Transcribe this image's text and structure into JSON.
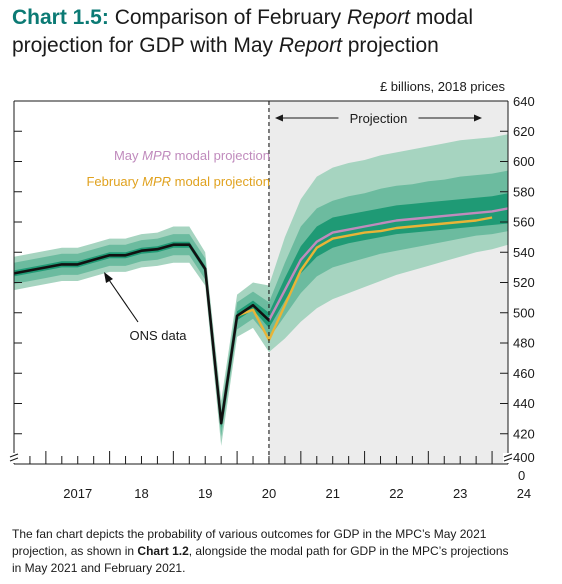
{
  "title": {
    "number": "Chart 1.5:",
    "part1": " Comparison of February ",
    "report1": "Report",
    "part2": " modal",
    "part3": "projection for GDP with May ",
    "report2": "Report",
    "part4": " projection"
  },
  "caption": {
    "part1": "The fan chart depicts the probability of various outcomes for GDP in the MPC’s May 2021",
    "part2": "projection, as shown in ",
    "bold": "Chart 1.2",
    "part3": ", alongside the modal path for GDP in the MPC’s projections",
    "part4": "in May 2021 and February 2021."
  },
  "colors": {
    "band_outer": "#a6d4c0",
    "band_mid": "#6cbb9f",
    "band_inner": "#1f9a75",
    "ons": "#111111",
    "may": "#c08bbd",
    "feb": "#e8b437",
    "projection_shade": "#ececec",
    "title_accent": "#0b7a74"
  },
  "chart_data": {
    "type": "line",
    "unit_label": "£ billions, 2018 prices",
    "x_ticks": [
      "2017",
      "18",
      "19",
      "20",
      "21",
      "22",
      "23",
      "24"
    ],
    "y_ticks": [
      "400",
      "420",
      "440",
      "460",
      "480",
      "500",
      "520",
      "540",
      "560",
      "580",
      "600",
      "620",
      "640"
    ],
    "y_zero_label": "0",
    "ylim": [
      400,
      640
    ],
    "xlim": [
      2016.5,
      2024.25
    ],
    "axis_break": true,
    "projection_start": 2020.5,
    "projection_label": "Projection",
    "annotations": {
      "ons_label": "ONS data",
      "may_label_pre": "May ",
      "may_label_it": "MPR",
      "may_label_post": " modal projection",
      "feb_label_pre": "February ",
      "feb_label_it": "MPR",
      "feb_label_post": " modal projection"
    },
    "history_x": [
      2016.5,
      2016.75,
      2017,
      2017.25,
      2017.5,
      2017.75,
      2018,
      2018.25,
      2018.5,
      2018.75,
      2019,
      2019.25,
      2019.5,
      2019.75,
      2020,
      2020.25,
      2020.5
    ],
    "series": [
      {
        "name": "ONS data",
        "x": [
          2016.5,
          2016.75,
          2017,
          2017.25,
          2017.5,
          2017.75,
          2018,
          2018.25,
          2018.5,
          2018.75,
          2019,
          2019.25,
          2019.5,
          2019.75,
          2020,
          2020.25,
          2020.5
        ],
        "values": [
          526,
          528,
          530,
          532,
          532,
          535,
          538,
          538,
          541,
          542,
          545,
          545,
          529,
          427,
          498,
          505,
          495
        ]
      },
      {
        "name": "May MPR modal projection",
        "x": [
          2020.5,
          2020.75,
          2021,
          2021.25,
          2021.5,
          2021.75,
          2022,
          2022.25,
          2022.5,
          2022.75,
          2023,
          2023.25,
          2023.5,
          2023.75,
          2024,
          2024.25
        ],
        "values": [
          495,
          515,
          535,
          547,
          553,
          555,
          557,
          559,
          561,
          562,
          563,
          564,
          565,
          566,
          567,
          569
        ]
      },
      {
        "name": "February MPR modal projection",
        "x": [
          2020,
          2020.25,
          2020.5,
          2020.75,
          2021,
          2021.25,
          2021.5,
          2021.75,
          2022,
          2022.25,
          2022.5,
          2022.75,
          2023,
          2023.25,
          2023.5,
          2023.75,
          2024
        ],
        "values": [
          498,
          502,
          482,
          505,
          528,
          543,
          549,
          551,
          553,
          554,
          556,
          557,
          558,
          559,
          560,
          561,
          563
        ]
      }
    ],
    "fan": {
      "x": [
        2016.5,
        2016.75,
        2017,
        2017.25,
        2017.5,
        2017.75,
        2018,
        2018.25,
        2018.5,
        2018.75,
        2019,
        2019.25,
        2019.5,
        2019.75,
        2020,
        2020.25,
        2020.5,
        2020.75,
        2021,
        2021.25,
        2021.5,
        2021.75,
        2022,
        2022.25,
        2022.5,
        2022.75,
        2023,
        2023.25,
        2023.5,
        2023.75,
        2024,
        2024.25
      ],
      "center": [
        526,
        528,
        530,
        532,
        532,
        535,
        538,
        538,
        541,
        542,
        545,
        545,
        529,
        427,
        498,
        505,
        495,
        515,
        535,
        547,
        553,
        555,
        557,
        559,
        561,
        562,
        563,
        564,
        565,
        566,
        567,
        569
      ],
      "bands": [
        {
          "name": "outer",
          "lower": [
            515,
            517,
            519,
            521,
            521,
            524,
            527,
            527,
            530,
            531,
            533,
            533,
            518,
            412,
            484,
            490,
            474,
            483,
            494,
            503,
            509,
            513,
            517,
            521,
            525,
            528,
            531,
            534,
            537,
            540,
            542,
            545
          ],
          "upper": [
            537,
            539,
            541,
            543,
            543,
            546,
            549,
            549,
            552,
            553,
            557,
            557,
            540,
            442,
            512,
            520,
            518,
            550,
            575,
            590,
            596,
            599,
            601,
            604,
            606,
            608,
            610,
            612,
            614,
            615,
            616,
            618
          ]
        },
        {
          "name": "mid",
          "lower": [
            519,
            521,
            523,
            525,
            525,
            528,
            531,
            531,
            534,
            535,
            538,
            538,
            522,
            418,
            489,
            496,
            483,
            498,
            513,
            524,
            530,
            533,
            536,
            539,
            541,
            543,
            545,
            547,
            549,
            551,
            552,
            554
          ],
          "upper": [
            533,
            535,
            537,
            539,
            539,
            542,
            545,
            545,
            548,
            549,
            552,
            552,
            536,
            436,
            507,
            514,
            507,
            533,
            557,
            569,
            574,
            577,
            579,
            582,
            584,
            585,
            587,
            588,
            590,
            591,
            592,
            594
          ]
        },
        {
          "name": "inner",
          "lower": [
            524,
            526,
            528,
            530,
            530,
            533,
            536,
            536,
            539,
            540,
            543,
            543,
            527,
            424,
            495,
            502,
            490,
            508,
            526,
            537,
            543,
            546,
            548,
            550,
            552,
            553,
            554,
            555,
            556,
            557,
            558,
            559
          ],
          "upper": [
            528,
            530,
            532,
            534,
            534,
            537,
            540,
            540,
            543,
            544,
            547,
            547,
            531,
            430,
            501,
            508,
            500,
            523,
            544,
            557,
            563,
            565,
            567,
            569,
            571,
            572,
            573,
            574,
            575,
            576,
            577,
            579
          ]
        }
      ]
    }
  }
}
